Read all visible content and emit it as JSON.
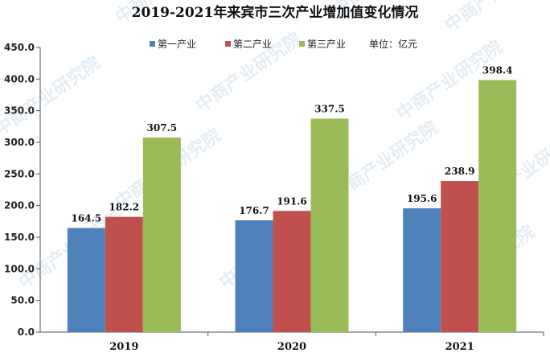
{
  "watermark": "中商产业研究院",
  "chart_data": {
    "type": "bar",
    "title": "2019-2021年来宾市三次产业增加值变化情况",
    "categories": [
      "2019",
      "2020",
      "2021"
    ],
    "series": [
      {
        "name": "第一产业",
        "color": "#4f81bd",
        "values": [
          164.5,
          176.7,
          195.6
        ]
      },
      {
        "name": "第二产业",
        "color": "#c0504d",
        "values": [
          182.2,
          191.6,
          238.9
        ]
      },
      {
        "name": "第三产业",
        "color": "#9bbb59",
        "values": [
          307.5,
          337.5,
          398.4
        ]
      }
    ],
    "unit_note": "单位：亿元",
    "ylim": [
      0,
      450
    ],
    "yticks": [
      "0.0",
      "50.0",
      "100.0",
      "150.0",
      "200.0",
      "250.0",
      "300.0",
      "350.0",
      "400.0",
      "450.0"
    ],
    "grid": false,
    "legend_position": "top-center"
  }
}
